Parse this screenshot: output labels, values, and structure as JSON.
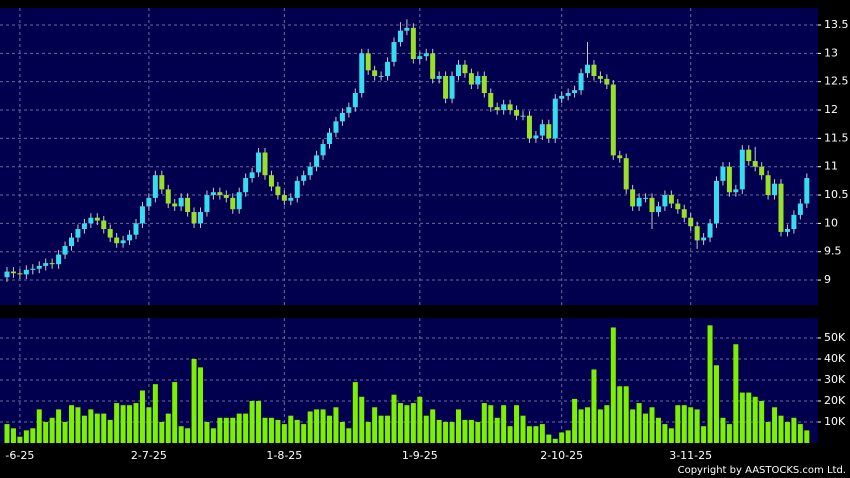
{
  "chart_data": [
    {
      "type": "candlestick",
      "categories": [
        null,
        null,
        "-6-25",
        null,
        null,
        null,
        null,
        null,
        null,
        null,
        null,
        null,
        null,
        null,
        null,
        null,
        null,
        null,
        null,
        null,
        null,
        null,
        "2-7-25",
        null,
        null,
        null,
        null,
        null,
        null,
        null,
        null,
        null,
        null,
        null,
        null,
        null,
        null,
        null,
        null,
        null,
        null,
        null,
        null,
        "1-8-25",
        null,
        null,
        null,
        null,
        null,
        null,
        null,
        null,
        null,
        null,
        null,
        null,
        null,
        null,
        null,
        null,
        null,
        null,
        null,
        null,
        "1-9-25",
        null,
        null,
        null,
        null,
        null,
        null,
        null,
        null,
        null,
        null,
        null,
        null,
        null,
        null,
        null,
        null,
        null,
        null,
        null,
        null,
        null,
        "2-10-25",
        null,
        null,
        null,
        null,
        null,
        null,
        null,
        null,
        null,
        null,
        null,
        null,
        null,
        null,
        null,
        null,
        null,
        null,
        null,
        "3-11-25",
        null,
        null,
        null,
        null,
        null,
        null,
        null,
        null,
        null,
        null,
        null,
        null,
        null,
        null,
        null,
        null,
        null,
        null
      ],
      "open": [
        9.05,
        9.15,
        9.12,
        9.1,
        9.18,
        9.2,
        9.25,
        9.3,
        9.28,
        9.45,
        9.6,
        9.75,
        9.9,
        10.0,
        10.1,
        10.05,
        9.9,
        9.75,
        9.65,
        9.7,
        9.8,
        10.0,
        10.3,
        10.45,
        10.85,
        10.6,
        10.35,
        10.3,
        10.45,
        10.2,
        10.0,
        10.2,
        10.5,
        10.55,
        10.5,
        10.45,
        10.25,
        10.55,
        10.8,
        10.9,
        11.25,
        10.85,
        10.65,
        10.5,
        10.4,
        10.45,
        10.75,
        10.85,
        11.0,
        11.2,
        11.4,
        11.6,
        11.8,
        11.95,
        12.05,
        12.3,
        13.0,
        12.7,
        12.6,
        12.6,
        12.85,
        13.2,
        13.4,
        13.45,
        12.9,
        12.95,
        13.0,
        12.55,
        12.6,
        12.2,
        12.6,
        12.8,
        12.65,
        12.45,
        12.6,
        12.3,
        12.05,
        12.0,
        12.1,
        12.0,
        11.9,
        11.9,
        11.5,
        11.55,
        11.75,
        11.5,
        12.2,
        12.25,
        12.3,
        12.35,
        12.65,
        12.8,
        12.6,
        12.55,
        12.45,
        11.2,
        11.15,
        10.6,
        10.3,
        10.45,
        10.45,
        10.2,
        10.3,
        10.5,
        10.35,
        10.25,
        10.1,
        9.95,
        9.7,
        9.75,
        10.0,
        10.75,
        11.0,
        10.55,
        10.6,
        11.3,
        11.1,
        11.0,
        10.85,
        10.5,
        10.7,
        9.85,
        9.9,
        10.15,
        10.35
      ],
      "high": [
        9.23,
        9.23,
        9.2,
        9.26,
        9.28,
        9.33,
        9.38,
        9.38,
        9.53,
        9.68,
        9.83,
        9.98,
        10.08,
        10.18,
        10.18,
        10.13,
        9.98,
        9.83,
        9.78,
        9.88,
        10.08,
        10.38,
        10.53,
        10.93,
        10.93,
        10.68,
        10.43,
        10.53,
        10.53,
        10.28,
        10.28,
        10.58,
        10.63,
        10.63,
        10.58,
        10.53,
        10.63,
        10.88,
        10.98,
        11.33,
        11.33,
        10.93,
        10.73,
        10.58,
        10.53,
        10.83,
        10.93,
        11.08,
        11.28,
        11.48,
        11.68,
        11.88,
        12.03,
        12.13,
        12.38,
        13.08,
        13.08,
        12.78,
        12.68,
        12.93,
        13.28,
        13.55,
        13.6,
        13.53,
        13.03,
        13.08,
        13.08,
        12.68,
        12.68,
        12.68,
        12.88,
        12.88,
        12.73,
        12.68,
        12.68,
        12.38,
        12.13,
        12.18,
        12.18,
        12.08,
        11.98,
        11.98,
        11.63,
        11.83,
        11.83,
        12.28,
        12.33,
        12.38,
        12.43,
        12.73,
        13.2,
        12.88,
        12.68,
        12.63,
        12.53,
        11.28,
        11.23,
        10.68,
        10.53,
        10.53,
        10.53,
        10.38,
        10.58,
        10.58,
        10.43,
        10.33,
        10.18,
        10.03,
        9.83,
        10.08,
        10.83,
        11.08,
        11.08,
        10.68,
        11.38,
        11.38,
        11.35,
        11.08,
        10.93,
        10.78,
        10.78,
        9.98,
        10.23,
        10.43,
        10.88
      ],
      "low": [
        8.97,
        9.04,
        9.02,
        9.02,
        9.1,
        9.12,
        9.17,
        9.2,
        9.2,
        9.37,
        9.52,
        9.67,
        9.82,
        9.92,
        9.97,
        9.82,
        9.67,
        9.57,
        9.57,
        9.62,
        9.72,
        9.92,
        10.22,
        10.37,
        10.52,
        10.27,
        10.22,
        10.22,
        10.12,
        9.92,
        9.92,
        10.12,
        10.42,
        10.42,
        10.37,
        10.17,
        10.17,
        10.47,
        10.72,
        10.82,
        10.77,
        10.57,
        10.42,
        10.32,
        10.32,
        10.37,
        10.67,
        10.77,
        10.92,
        11.12,
        11.32,
        11.52,
        11.72,
        11.87,
        11.97,
        12.22,
        12.62,
        12.52,
        12.52,
        12.52,
        12.77,
        13.12,
        13.32,
        12.82,
        12.82,
        12.87,
        12.47,
        12.47,
        12.12,
        12.12,
        12.52,
        12.57,
        12.37,
        12.37,
        12.22,
        11.97,
        11.92,
        11.92,
        11.92,
        11.82,
        11.82,
        11.42,
        11.42,
        11.47,
        11.42,
        11.42,
        12.12,
        12.17,
        12.22,
        12.27,
        12.57,
        12.52,
        12.47,
        12.37,
        11.12,
        11.07,
        10.52,
        10.22,
        10.22,
        10.37,
        9.9,
        10.12,
        10.22,
        10.27,
        10.17,
        10.02,
        9.87,
        9.55,
        9.62,
        9.67,
        9.92,
        10.67,
        10.47,
        10.47,
        10.52,
        11.02,
        10.92,
        10.77,
        10.42,
        10.42,
        9.77,
        9.77,
        9.82,
        10.07,
        10.27
      ],
      "close": [
        9.15,
        9.12,
        9.1,
        9.18,
        9.2,
        9.25,
        9.3,
        9.28,
        9.45,
        9.6,
        9.75,
        9.9,
        10.0,
        10.1,
        10.05,
        9.9,
        9.75,
        9.65,
        9.7,
        9.8,
        10.0,
        10.3,
        10.45,
        10.85,
        10.6,
        10.35,
        10.3,
        10.45,
        10.2,
        10.0,
        10.2,
        10.5,
        10.55,
        10.5,
        10.45,
        10.25,
        10.55,
        10.8,
        10.9,
        11.25,
        10.85,
        10.65,
        10.5,
        10.4,
        10.45,
        10.75,
        10.85,
        11.0,
        11.2,
        11.4,
        11.6,
        11.8,
        11.95,
        12.05,
        12.3,
        13.0,
        12.7,
        12.6,
        12.6,
        12.85,
        13.2,
        13.4,
        13.45,
        12.9,
        12.95,
        13.0,
        12.55,
        12.6,
        12.2,
        12.6,
        12.8,
        12.65,
        12.45,
        12.6,
        12.3,
        12.05,
        12.0,
        12.1,
        12.0,
        11.9,
        11.9,
        11.5,
        11.55,
        11.75,
        11.5,
        12.2,
        12.25,
        12.3,
        12.35,
        12.65,
        12.8,
        12.6,
        12.55,
        12.45,
        11.2,
        11.15,
        10.6,
        10.3,
        10.45,
        10.45,
        10.2,
        10.3,
        10.5,
        10.35,
        10.25,
        10.1,
        9.95,
        9.7,
        9.75,
        10.0,
        10.75,
        11.0,
        10.55,
        10.6,
        11.3,
        11.1,
        11.0,
        10.85,
        10.5,
        10.7,
        9.85,
        9.9,
        10.15,
        10.35,
        10.8
      ],
      "up_color": "#38dcf0",
      "down_color": "#9ae02a",
      "ylim": [
        8.56,
        13.8
      ],
      "yticks": [
        9,
        9.5,
        10,
        10.5,
        11,
        11.5,
        12,
        12.5,
        13,
        13.5
      ],
      "grid": true
    },
    {
      "type": "bar",
      "values": [
        9000,
        7000,
        3000,
        6000,
        7000,
        16000,
        10000,
        12000,
        16000,
        10000,
        18000,
        17000,
        13000,
        16000,
        14000,
        14000,
        11000,
        19000,
        18000,
        18000,
        19000,
        25000,
        17000,
        28000,
        10000,
        14000,
        29000,
        8000,
        7000,
        40000,
        36000,
        10000,
        7000,
        12000,
        12000,
        12000,
        14000,
        14000,
        20000,
        20000,
        12000,
        12000,
        11000,
        9000,
        13000,
        11000,
        9000,
        15000,
        16000,
        16000,
        13000,
        17000,
        10000,
        7000,
        29000,
        22000,
        10000,
        17000,
        13000,
        13000,
        23000,
        19000,
        18000,
        19000,
        22000,
        13000,
        16000,
        11000,
        10000,
        10000,
        16000,
        11000,
        11000,
        10000,
        19000,
        18000,
        12000,
        18000,
        8000,
        18000,
        13000,
        8000,
        8000,
        9000,
        4000,
        2000,
        5000,
        6000,
        21000,
        16000,
        17000,
        35000,
        16000,
        18000,
        55000,
        27000,
        27000,
        16000,
        19000,
        14000,
        17000,
        12000,
        9000,
        7000,
        18000,
        18000,
        17000,
        16000,
        8000,
        56000,
        37000,
        12000,
        9000,
        47000,
        24000,
        24000,
        22000,
        20000,
        10000,
        17000,
        13000,
        10000,
        12000,
        9000,
        6000
      ],
      "color": "#7cf000",
      "ylim": [
        0,
        59500
      ],
      "yticks": [
        {
          "value": 10000,
          "label": "10K"
        },
        {
          "value": 20000,
          "label": "20K"
        },
        {
          "value": 30000,
          "label": "30K"
        },
        {
          "value": 40000,
          "label": "40K"
        },
        {
          "value": 50000,
          "label": "50K"
        }
      ],
      "grid": true
    }
  ],
  "copyright": "Copyright by AASTOCKS.com Ltd."
}
